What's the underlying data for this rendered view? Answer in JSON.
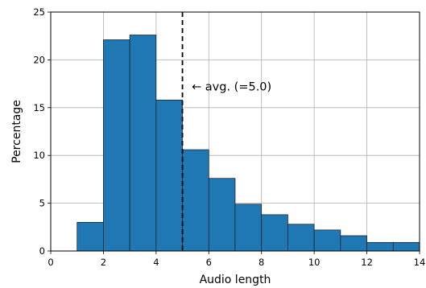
{
  "chart_data": {
    "type": "bar",
    "title": "",
    "xlabel": "Audio length",
    "ylabel": "Percentage",
    "xlim": [
      0,
      14
    ],
    "ylim": [
      0,
      25
    ],
    "xticks": [
      0,
      2,
      4,
      6,
      8,
      10,
      12,
      14
    ],
    "yticks": [
      0,
      5,
      10,
      15,
      20,
      25
    ],
    "grid": true,
    "bins": [
      {
        "x0": 1,
        "x1": 2,
        "value": 3.0
      },
      {
        "x0": 2,
        "x1": 3,
        "value": 22.1
      },
      {
        "x0": 3,
        "x1": 4,
        "value": 22.6
      },
      {
        "x0": 4,
        "x1": 5,
        "value": 15.8
      },
      {
        "x0": 5,
        "x1": 6,
        "value": 10.6
      },
      {
        "x0": 6,
        "x1": 7,
        "value": 7.6
      },
      {
        "x0": 7,
        "x1": 8,
        "value": 4.9
      },
      {
        "x0": 8,
        "x1": 9,
        "value": 3.8
      },
      {
        "x0": 9,
        "x1": 10,
        "value": 2.8
      },
      {
        "x0": 10,
        "x1": 11,
        "value": 2.2
      },
      {
        "x0": 11,
        "x1": 12,
        "value": 1.6
      },
      {
        "x0": 12,
        "x1": 13,
        "value": 0.9
      },
      {
        "x0": 13,
        "x1": 14,
        "value": 0.9
      }
    ],
    "bar_color": "#1f77b4",
    "average_line": {
      "x": 5.0,
      "label": "← avg. (=5.0)",
      "label_x": 5.35,
      "label_y": 17.2
    }
  }
}
